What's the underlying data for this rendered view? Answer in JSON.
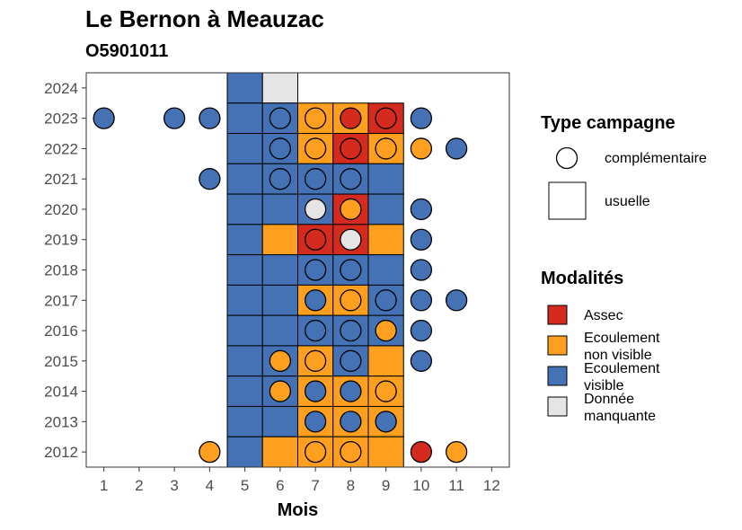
{
  "title": "Le Bernon à Meauzac",
  "subtitle": "O5901011",
  "colors": {
    "Assec": "#D52B1E",
    "Ecoulement non visible": "#FF9F1F",
    "Ecoulement visible": "#4472B5",
    "Donnée manquante": "#E5E5E5"
  },
  "chart_data": {
    "type": "heatmap",
    "xlabel": "Mois",
    "ylabel": "",
    "x_ticks": [
      1,
      2,
      3,
      4,
      5,
      6,
      7,
      8,
      9,
      10,
      11,
      12
    ],
    "y_ticks": [
      2012,
      2013,
      2014,
      2015,
      2016,
      2017,
      2018,
      2019,
      2020,
      2021,
      2022,
      2023,
      2024
    ],
    "xlim": [
      0.5,
      12.5
    ],
    "ylim": [
      2011.5,
      2024.5
    ],
    "grid": false,
    "legend_position": "right",
    "legend": {
      "shape_title": "Type campagne",
      "shapes": [
        {
          "label": "complémentaire",
          "shape": "circle"
        },
        {
          "label": "usuelle",
          "shape": "square"
        }
      ],
      "fill_title": "Modalités",
      "fills": [
        {
          "lines": [
            "Assec"
          ],
          "key": "Assec"
        },
        {
          "lines": [
            "Ecoulement",
            "non visible"
          ],
          "key": "Ecoulement non visible"
        },
        {
          "lines": [
            "Ecoulement",
            "visible"
          ],
          "key": "Ecoulement visible"
        },
        {
          "lines": [
            "Donnée",
            "manquante"
          ],
          "key": "Donnée manquante"
        }
      ]
    },
    "usuelle": [
      {
        "year": 2024,
        "months": {
          "5": "Ecoulement visible",
          "6": "Donnée manquante"
        }
      },
      {
        "year": 2023,
        "months": {
          "5": "Ecoulement visible",
          "6": "Ecoulement visible",
          "7": "Ecoulement non visible",
          "8": "Ecoulement non visible",
          "9": "Assec"
        }
      },
      {
        "year": 2022,
        "months": {
          "5": "Ecoulement visible",
          "6": "Ecoulement visible",
          "7": "Ecoulement non visible",
          "8": "Assec",
          "9": "Ecoulement non visible"
        }
      },
      {
        "year": 2021,
        "months": {
          "5": "Ecoulement visible",
          "6": "Ecoulement visible",
          "7": "Ecoulement visible",
          "8": "Ecoulement visible",
          "9": "Ecoulement visible"
        }
      },
      {
        "year": 2020,
        "months": {
          "5": "Ecoulement visible",
          "6": "Ecoulement visible",
          "7": "Ecoulement visible",
          "8": "Assec",
          "9": "Ecoulement visible"
        }
      },
      {
        "year": 2019,
        "months": {
          "5": "Ecoulement visible",
          "6": "Ecoulement non visible",
          "7": "Assec",
          "8": "Assec",
          "9": "Ecoulement non visible"
        }
      },
      {
        "year": 2018,
        "months": {
          "5": "Ecoulement visible",
          "6": "Ecoulement visible",
          "7": "Ecoulement visible",
          "8": "Ecoulement visible",
          "9": "Ecoulement visible"
        }
      },
      {
        "year": 2017,
        "months": {
          "5": "Ecoulement visible",
          "6": "Ecoulement visible",
          "7": "Ecoulement non visible",
          "8": "Ecoulement non visible",
          "9": "Ecoulement visible"
        }
      },
      {
        "year": 2016,
        "months": {
          "5": "Ecoulement visible",
          "6": "Ecoulement visible",
          "7": "Ecoulement visible",
          "8": "Ecoulement visible",
          "9": "Ecoulement visible"
        }
      },
      {
        "year": 2015,
        "months": {
          "5": "Ecoulement visible",
          "6": "Ecoulement visible",
          "7": "Ecoulement non visible",
          "8": "Ecoulement visible",
          "9": "Ecoulement non visible"
        }
      },
      {
        "year": 2014,
        "months": {
          "5": "Ecoulement visible",
          "6": "Ecoulement visible",
          "7": "Ecoulement non visible",
          "8": "Ecoulement non visible",
          "9": "Ecoulement non visible"
        }
      },
      {
        "year": 2013,
        "months": {
          "5": "Ecoulement visible",
          "6": "Ecoulement visible",
          "7": "Ecoulement non visible",
          "8": "Ecoulement non visible",
          "9": "Ecoulement non visible"
        }
      },
      {
        "year": 2012,
        "months": {
          "5": "Ecoulement visible",
          "6": "Ecoulement non visible",
          "7": "Ecoulement non visible",
          "8": "Ecoulement non visible",
          "9": "Ecoulement non visible"
        }
      }
    ],
    "complementaire": [
      {
        "year": 2023,
        "months": {
          "1": "Ecoulement visible",
          "3": "Ecoulement visible",
          "4": "Ecoulement visible",
          "6": "Ecoulement visible",
          "7": "Ecoulement non visible",
          "8": "Assec",
          "9": "Assec",
          "10": "Ecoulement visible"
        }
      },
      {
        "year": 2022,
        "months": {
          "6": "Ecoulement visible",
          "7": "Ecoulement non visible",
          "8": "Assec",
          "9": "Ecoulement non visible",
          "10": "Ecoulement non visible",
          "11": "Ecoulement visible"
        }
      },
      {
        "year": 2021,
        "months": {
          "4": "Ecoulement visible",
          "6": "Ecoulement visible",
          "7": "Ecoulement visible",
          "8": "Ecoulement visible"
        }
      },
      {
        "year": 2020,
        "months": {
          "7": "Donnée manquante",
          "8": "Ecoulement non visible",
          "10": "Ecoulement visible"
        }
      },
      {
        "year": 2019,
        "months": {
          "7": "Assec",
          "8": "Donnée manquante",
          "10": "Ecoulement visible"
        }
      },
      {
        "year": 2018,
        "months": {
          "7": "Ecoulement visible",
          "8": "Ecoulement visible",
          "10": "Ecoulement visible"
        }
      },
      {
        "year": 2017,
        "months": {
          "7": "Ecoulement visible",
          "8": "Ecoulement non visible",
          "9": "Ecoulement visible",
          "10": "Ecoulement visible",
          "11": "Ecoulement visible"
        }
      },
      {
        "year": 2016,
        "months": {
          "7": "Ecoulement visible",
          "8": "Ecoulement visible",
          "9": "Ecoulement non visible",
          "10": "Ecoulement visible"
        }
      },
      {
        "year": 2015,
        "months": {
          "6": "Ecoulement non visible",
          "7": "Ecoulement non visible",
          "8": "Ecoulement visible",
          "10": "Ecoulement visible"
        }
      },
      {
        "year": 2014,
        "months": {
          "6": "Ecoulement non visible",
          "7": "Ecoulement visible",
          "8": "Ecoulement visible",
          "9": "Ecoulement non visible"
        }
      },
      {
        "year": 2013,
        "months": {
          "7": "Ecoulement visible",
          "8": "Ecoulement visible",
          "9": "Ecoulement visible"
        }
      },
      {
        "year": 2012,
        "months": {
          "4": "Ecoulement non visible",
          "7": "Ecoulement non visible",
          "8": "Ecoulement non visible",
          "10": "Assec",
          "11": "Ecoulement non visible"
        }
      }
    ]
  }
}
